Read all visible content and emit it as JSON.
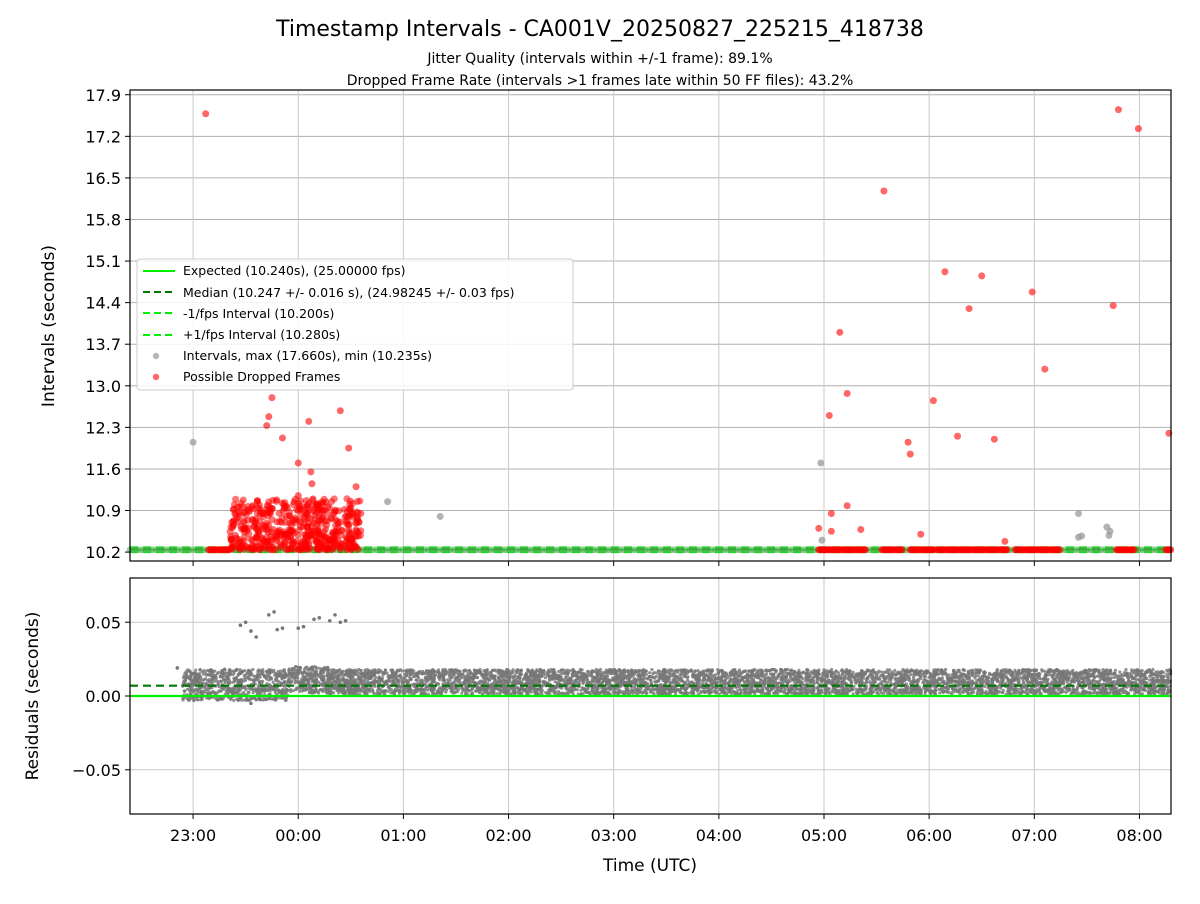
{
  "chart_data": [
    {
      "type": "scatter",
      "panel": "intervals",
      "title": "Timestamp Intervals - CA001V_20250827_225215_418738",
      "subtitle_lines": [
        "Jitter Quality (intervals within +/-1 frame): 89.1%",
        "Dropped Frame Rate (intervals >1 frames late within 50 FF files): 43.2%"
      ],
      "ylabel": "Intervals (seconds)",
      "ylim": [
        10.05,
        17.98
      ],
      "y_ticks": [
        "10.2",
        "10.9",
        "11.6",
        "12.3",
        "13.0",
        "13.7",
        "14.4",
        "15.1",
        "15.8",
        "16.5",
        "17.2",
        "17.9"
      ],
      "x_range_hours": [
        22.4,
        32.3
      ],
      "x_tick_labels": [
        "23:00",
        "00:00",
        "01:00",
        "02:00",
        "03:00",
        "04:00",
        "05:00",
        "06:00",
        "07:00",
        "08:00"
      ],
      "grid": true,
      "legend_placement": "center-left",
      "colors": {
        "expected": "#00ee00",
        "median": "#007700",
        "interval_bounds": "#00ee00",
        "intervals": "#999999",
        "dropped": "#ff0000"
      },
      "reference_lines": [
        {
          "name": "Expected (10.240s), (25.00000 fps)",
          "y": 10.24,
          "style": "solid",
          "color": "#00ee00"
        },
        {
          "name": "Median (10.247 +/- 0.016 s), (24.98245 +/- 0.03 fps)",
          "y": 10.247,
          "style": "dashed",
          "color": "#007700"
        },
        {
          "name": "-1/fps Interval (10.200s)",
          "y": 10.2,
          "style": "dashed",
          "color": "#00ee00"
        },
        {
          "name": "+1/fps Interval (10.280s)",
          "y": 10.28,
          "style": "dashed",
          "color": "#00ee00"
        }
      ],
      "series": [
        {
          "name": "Intervals, max (17.660s), min (10.235s)",
          "marker": "circle",
          "color": "#999999",
          "points": [
            [
              23.0,
              12.05
            ],
            [
              24.85,
              11.05
            ],
            [
              25.35,
              10.8
            ],
            [
              28.97,
              11.7
            ],
            [
              28.98,
              10.4
            ],
            [
              31.42,
              10.85
            ],
            [
              31.42,
              10.45
            ],
            [
              31.45,
              10.47
            ],
            [
              31.69,
              10.62
            ],
            [
              31.71,
              10.48
            ],
            [
              31.72,
              10.55
            ],
            [
              32.37,
              11.45
            ],
            [
              32.74,
              11.55
            ],
            [
              33.0,
              11.2
            ]
          ]
        },
        {
          "name": "Possible Dropped Frames",
          "marker": "circle",
          "color": "#ff0000",
          "points": [
            [
              23.12,
              17.58
            ],
            [
              23.75,
              12.8
            ],
            [
              23.72,
              12.48
            ],
            [
              23.7,
              12.33
            ],
            [
              23.85,
              12.12
            ],
            [
              24.0,
              11.7
            ],
            [
              24.0,
              11.15
            ],
            [
              24.1,
              12.4
            ],
            [
              24.12,
              11.55
            ],
            [
              24.13,
              11.35
            ],
            [
              24.4,
              12.58
            ],
            [
              24.48,
              11.95
            ],
            [
              24.55,
              11.3
            ],
            [
              28.95,
              10.6
            ],
            [
              29.05,
              12.5
            ],
            [
              29.07,
              10.85
            ],
            [
              29.07,
              10.55
            ],
            [
              29.15,
              13.9
            ],
            [
              29.22,
              12.87
            ],
            [
              29.22,
              10.98
            ],
            [
              29.35,
              10.58
            ],
            [
              29.57,
              16.28
            ],
            [
              29.8,
              12.05
            ],
            [
              29.82,
              11.85
            ],
            [
              29.92,
              10.5
            ],
            [
              30.04,
              12.75
            ],
            [
              30.15,
              14.92
            ],
            [
              30.27,
              12.15
            ],
            [
              30.38,
              14.3
            ],
            [
              30.5,
              14.85
            ],
            [
              30.62,
              12.1
            ],
            [
              30.72,
              10.38
            ],
            [
              30.98,
              14.58
            ],
            [
              31.1,
              13.28
            ],
            [
              31.8,
              17.65
            ],
            [
              32.28,
              12.2
            ],
            [
              31.75,
              14.35
            ],
            [
              31.99,
              17.33
            ],
            [
              32.5,
              12.85
            ],
            [
              33.15,
              13.7
            ]
          ],
          "clusters": [
            {
              "x_from": 23.15,
              "x_to": 23.35,
              "y": 10.24
            },
            {
              "x_from": 23.35,
              "x_to": 24.6,
              "y_from": 10.24,
              "y_to": 11.1
            },
            {
              "x_from": 28.95,
              "x_to": 29.4,
              "y": 10.24
            },
            {
              "x_from": 29.55,
              "x_to": 29.75,
              "y": 10.24
            },
            {
              "x_from": 29.82,
              "x_to": 30.05,
              "y": 10.24
            },
            {
              "x_from": 30.08,
              "x_to": 30.75,
              "y": 10.24
            },
            {
              "x_from": 30.82,
              "x_to": 31.25,
              "y": 10.24
            },
            {
              "x_from": 31.78,
              "x_to": 31.95,
              "y": 10.24
            },
            {
              "x_from": 32.25,
              "x_to": 32.45,
              "y": 10.24
            },
            {
              "x_from": 32.72,
              "x_to": 32.92,
              "y": 10.24
            },
            {
              "x_from": 33.0,
              "x_to": 33.18,
              "y": 10.24
            },
            {
              "x_from": 33.5,
              "x_to": 33.7,
              "y": 10.24
            },
            {
              "x_from": 34.1,
              "x_to": 34.3,
              "y": 10.24
            }
          ]
        }
      ]
    },
    {
      "type": "scatter",
      "panel": "residuals",
      "xlabel": "Time (UTC)",
      "ylabel": "Residuals (seconds)",
      "ylim": [
        -0.08,
        0.08
      ],
      "y_ticks": [
        "−0.05",
        "0.00",
        "0.05"
      ],
      "y_tick_values": [
        -0.05,
        0.0,
        0.05
      ],
      "x_range_hours": [
        22.4,
        32.3
      ],
      "x_tick_labels": [
        "23:00",
        "00:00",
        "01:00",
        "02:00",
        "03:00",
        "04:00",
        "05:00",
        "06:00",
        "07:00",
        "08:00"
      ],
      "grid": true,
      "reference_lines": [
        {
          "y": 0.0,
          "style": "solid",
          "color": "#00ee00"
        },
        {
          "y": 0.007,
          "style": "dashed",
          "color": "#007700"
        }
      ],
      "series": [
        {
          "marker": "dot",
          "color": "#777777",
          "outliers": [
            [
              23.45,
              0.048
            ],
            [
              23.5,
              0.05
            ],
            [
              23.55,
              0.044
            ],
            [
              23.6,
              0.04
            ],
            [
              23.72,
              0.055
            ],
            [
              23.77,
              0.057
            ],
            [
              23.8,
              0.045
            ],
            [
              23.85,
              0.046
            ],
            [
              24.0,
              0.046
            ],
            [
              24.05,
              0.047
            ],
            [
              24.15,
              0.052
            ],
            [
              24.2,
              0.053
            ],
            [
              24.3,
              0.051
            ],
            [
              24.35,
              0.055
            ],
            [
              24.4,
              0.05
            ],
            [
              24.45,
              0.051
            ],
            [
              23.55,
              -0.005
            ],
            [
              23.3,
              0.018
            ],
            [
              22.85,
              0.019
            ]
          ],
          "bands": [
            {
              "x_from": 22.9,
              "x_to": 23.9,
              "y_from": -0.003,
              "y_to": 0.018
            },
            {
              "x_from": 23.9,
              "x_to": 24.3,
              "y_from": 0.002,
              "y_to": 0.02
            },
            {
              "x_from": 24.3,
              "x_to": 32.3,
              "y_from": 0.001,
              "y_to": 0.018
            }
          ]
        }
      ]
    }
  ]
}
